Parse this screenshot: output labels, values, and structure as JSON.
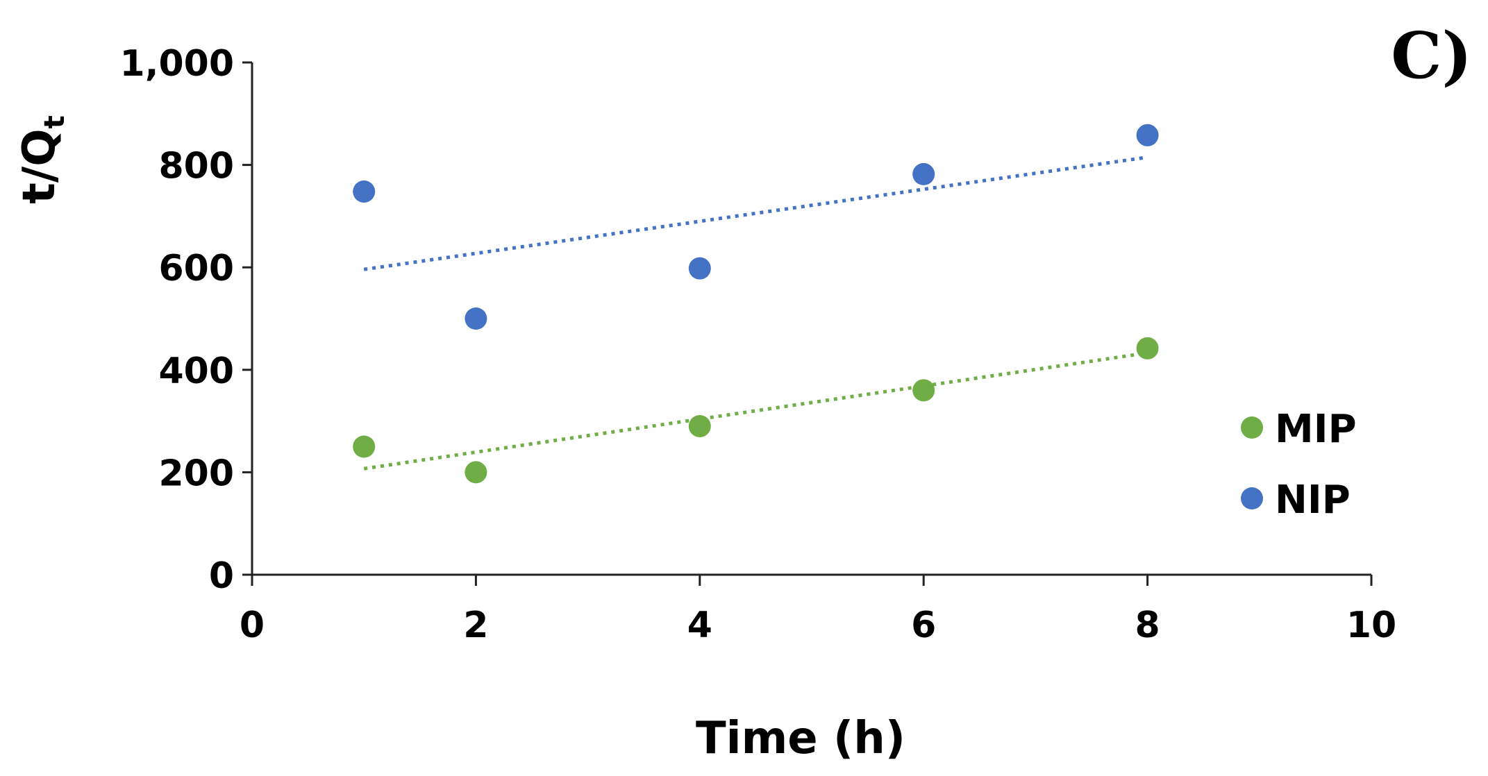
{
  "panel_label": "C)",
  "chart_data": {
    "type": "scatter",
    "title": "",
    "xlabel": "Time (h)",
    "ylabel": "t/Q",
    "ylabel_subscript": "t",
    "xlim": [
      0,
      10
    ],
    "ylim": [
      0,
      1000
    ],
    "x_ticks": [
      0,
      2,
      4,
      6,
      8,
      10
    ],
    "x_tick_labels": [
      "0",
      "2",
      "4",
      "6",
      "8",
      "10"
    ],
    "y_ticks": [
      0,
      200,
      400,
      600,
      800,
      1000
    ],
    "y_tick_labels": [
      "0",
      "200",
      "400",
      "600",
      "800",
      "1,000"
    ],
    "grid": false,
    "legend_position": "right",
    "series": [
      {
        "name": "MIP",
        "color": "#70ad47",
        "x": [
          1,
          2,
          4,
          6,
          8
        ],
        "y": [
          250,
          200,
          290,
          360,
          442
        ],
        "trendline": {
          "style": "dotted",
          "x": [
            1,
            8
          ],
          "y": [
            207,
            433
          ]
        }
      },
      {
        "name": "NIP",
        "color": "#4472c4",
        "x": [
          1,
          2,
          4,
          6,
          8
        ],
        "y": [
          748,
          500,
          598,
          782,
          858
        ],
        "trendline": {
          "style": "dotted",
          "x": [
            1,
            8
          ],
          "y": [
            596,
            815
          ]
        }
      }
    ]
  }
}
